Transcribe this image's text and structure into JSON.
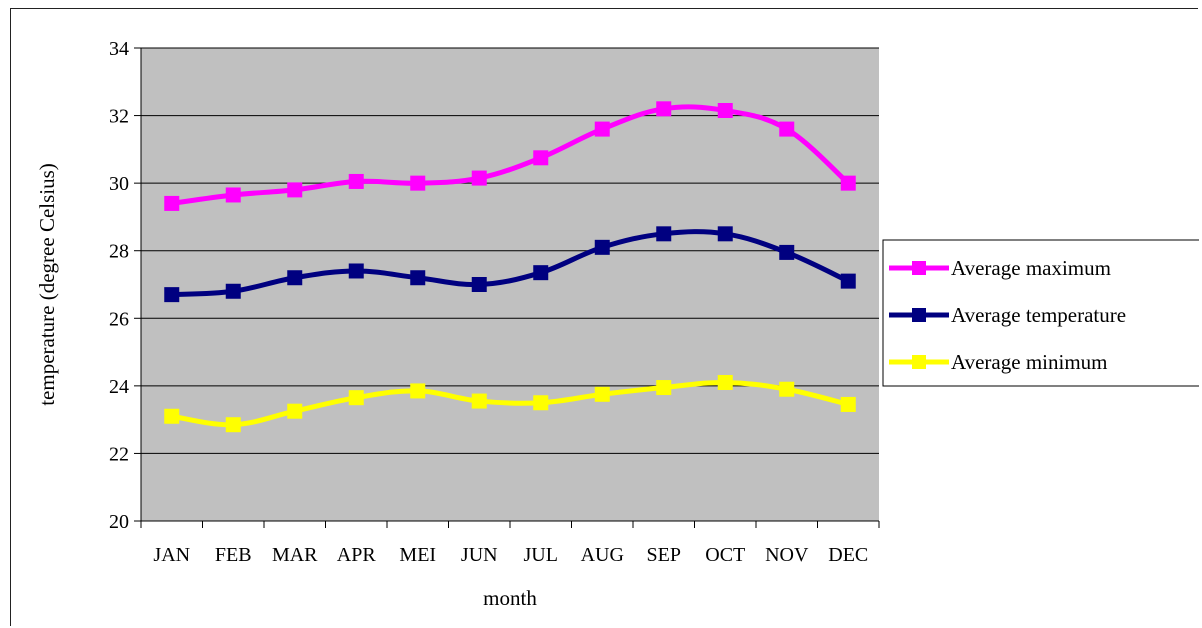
{
  "chart_data": {
    "type": "line",
    "categories": [
      "JAN",
      "FEB",
      "MAR",
      "APR",
      "MEI",
      "JUN",
      "JUL",
      "AUG",
      "SEP",
      "OCT",
      "NOV",
      "DEC"
    ],
    "series": [
      {
        "name": "Average maximum",
        "color": "#ff00ff",
        "values": [
          29.4,
          29.65,
          29.8,
          30.05,
          30.0,
          30.15,
          30.75,
          31.6,
          32.2,
          32.15,
          31.6,
          30.0
        ]
      },
      {
        "name": "Average temperature",
        "color": "#000080",
        "values": [
          26.7,
          26.8,
          27.2,
          27.4,
          27.2,
          27.0,
          27.35,
          28.1,
          28.5,
          28.5,
          27.95,
          27.1
        ]
      },
      {
        "name": "Average minimum",
        "color": "#ffff00",
        "values": [
          23.1,
          22.85,
          23.25,
          23.65,
          23.85,
          23.55,
          23.5,
          23.75,
          23.95,
          24.1,
          23.9,
          23.45
        ]
      }
    ],
    "xlabel": "month",
    "ylabel": "temperature (degree Celsius)",
    "ylim": [
      20,
      34
    ],
    "yticks": [
      "20",
      "22",
      "24",
      "26",
      "28",
      "30",
      "32",
      "34"
    ],
    "grid": true,
    "legend": "right",
    "plot_background": "#c0c0c0"
  }
}
